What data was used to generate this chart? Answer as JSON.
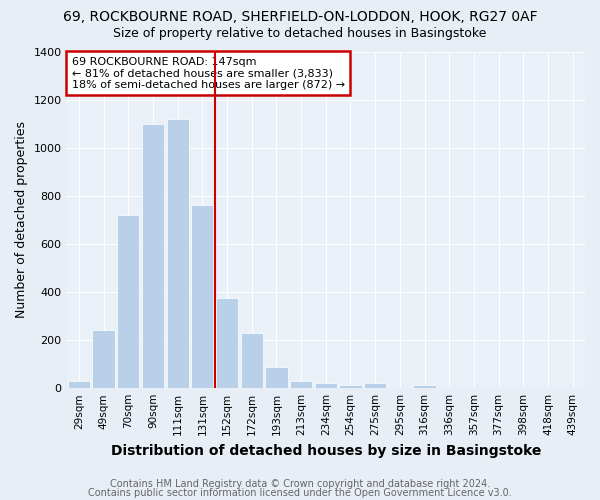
{
  "title": "69, ROCKBOURNE ROAD, SHERFIELD-ON-LODDON, HOOK, RG27 0AF",
  "subtitle": "Size of property relative to detached houses in Basingstoke",
  "xlabel": "Distribution of detached houses by size in Basingstoke",
  "ylabel": "Number of detached properties",
  "footnote1": "Contains HM Land Registry data © Crown copyright and database right 2024.",
  "footnote2": "Contains public sector information licensed under the Open Government Licence v3.0.",
  "categories": [
    "29sqm",
    "49sqm",
    "70sqm",
    "90sqm",
    "111sqm",
    "131sqm",
    "152sqm",
    "172sqm",
    "193sqm",
    "213sqm",
    "234sqm",
    "254sqm",
    "275sqm",
    "295sqm",
    "316sqm",
    "336sqm",
    "357sqm",
    "377sqm",
    "398sqm",
    "418sqm",
    "439sqm"
  ],
  "values": [
    30,
    240,
    720,
    1100,
    1120,
    760,
    375,
    230,
    90,
    30,
    20,
    15,
    20,
    0,
    12,
    0,
    0,
    0,
    0,
    0,
    0
  ],
  "bar_color": "#b8d0e8",
  "bar_edge_color": "#b8d0e8",
  "vline_x_index": 6,
  "vline_color": "#cc0000",
  "annotation_line1": "69 ROCKBOURNE ROAD: 147sqm",
  "annotation_line2": "← 81% of detached houses are smaller (3,833)",
  "annotation_line3": "18% of semi-detached houses are larger (872) →",
  "box_color": "#cc0000",
  "ylim": [
    0,
    1400
  ],
  "yticks": [
    0,
    200,
    400,
    600,
    800,
    1000,
    1200,
    1400
  ],
  "bg_color": "#e8eef5",
  "plot_bg_color": "#eaf0f8",
  "title_fontsize": 10,
  "subtitle_fontsize": 9,
  "ylabel_fontsize": 9,
  "xlabel_fontsize": 10,
  "footnote_fontsize": 7,
  "tick_fontsize": 8,
  "xtick_fontsize": 7.5
}
